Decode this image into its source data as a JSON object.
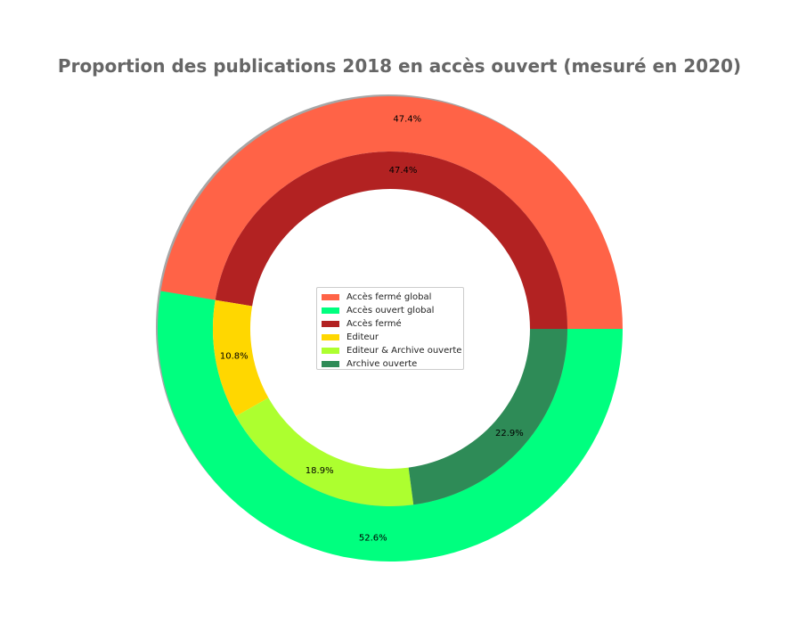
{
  "chart_data": {
    "type": "pie",
    "subtype": "nested-donut",
    "title": "Proportion des publications 2018 en accès ouvert (mesuré en 2020)",
    "legend_placement": "center",
    "rings": [
      {
        "ring": "outer",
        "slices": [
          {
            "label": "Accès fermé global",
            "value": 47.4,
            "label_text": "47.4%",
            "color": "#ff6347"
          },
          {
            "label": "Accès ouvert global",
            "value": 52.6,
            "label_text": "52.6%",
            "color": "#00ff7f"
          }
        ]
      },
      {
        "ring": "inner",
        "slices": [
          {
            "label": "Accès fermé",
            "value": 47.4,
            "label_text": "47.4%",
            "color": "#b22222"
          },
          {
            "label": "Editeur",
            "value": 10.8,
            "label_text": "10.8%",
            "color": "#ffd700"
          },
          {
            "label": "Editeur & Archive ouverte",
            "value": 18.9,
            "label_text": "18.9%",
            "color": "#adff2f"
          },
          {
            "label": "Archive ouverte",
            "value": 22.9,
            "label_text": "22.9%",
            "color": "#2e8b57"
          }
        ]
      }
    ],
    "legend": [
      {
        "label": "Accès fermé global",
        "color": "#ff6347"
      },
      {
        "label": "Accès ouvert global",
        "color": "#00ff7f"
      },
      {
        "label": "Accès fermé",
        "color": "#b22222"
      },
      {
        "label": "Editeur",
        "color": "#ffd700"
      },
      {
        "label": "Editeur & Archive ouverte",
        "color": "#adff2f"
      },
      {
        "label": "Archive ouverte",
        "color": "#2e8b57"
      }
    ]
  }
}
